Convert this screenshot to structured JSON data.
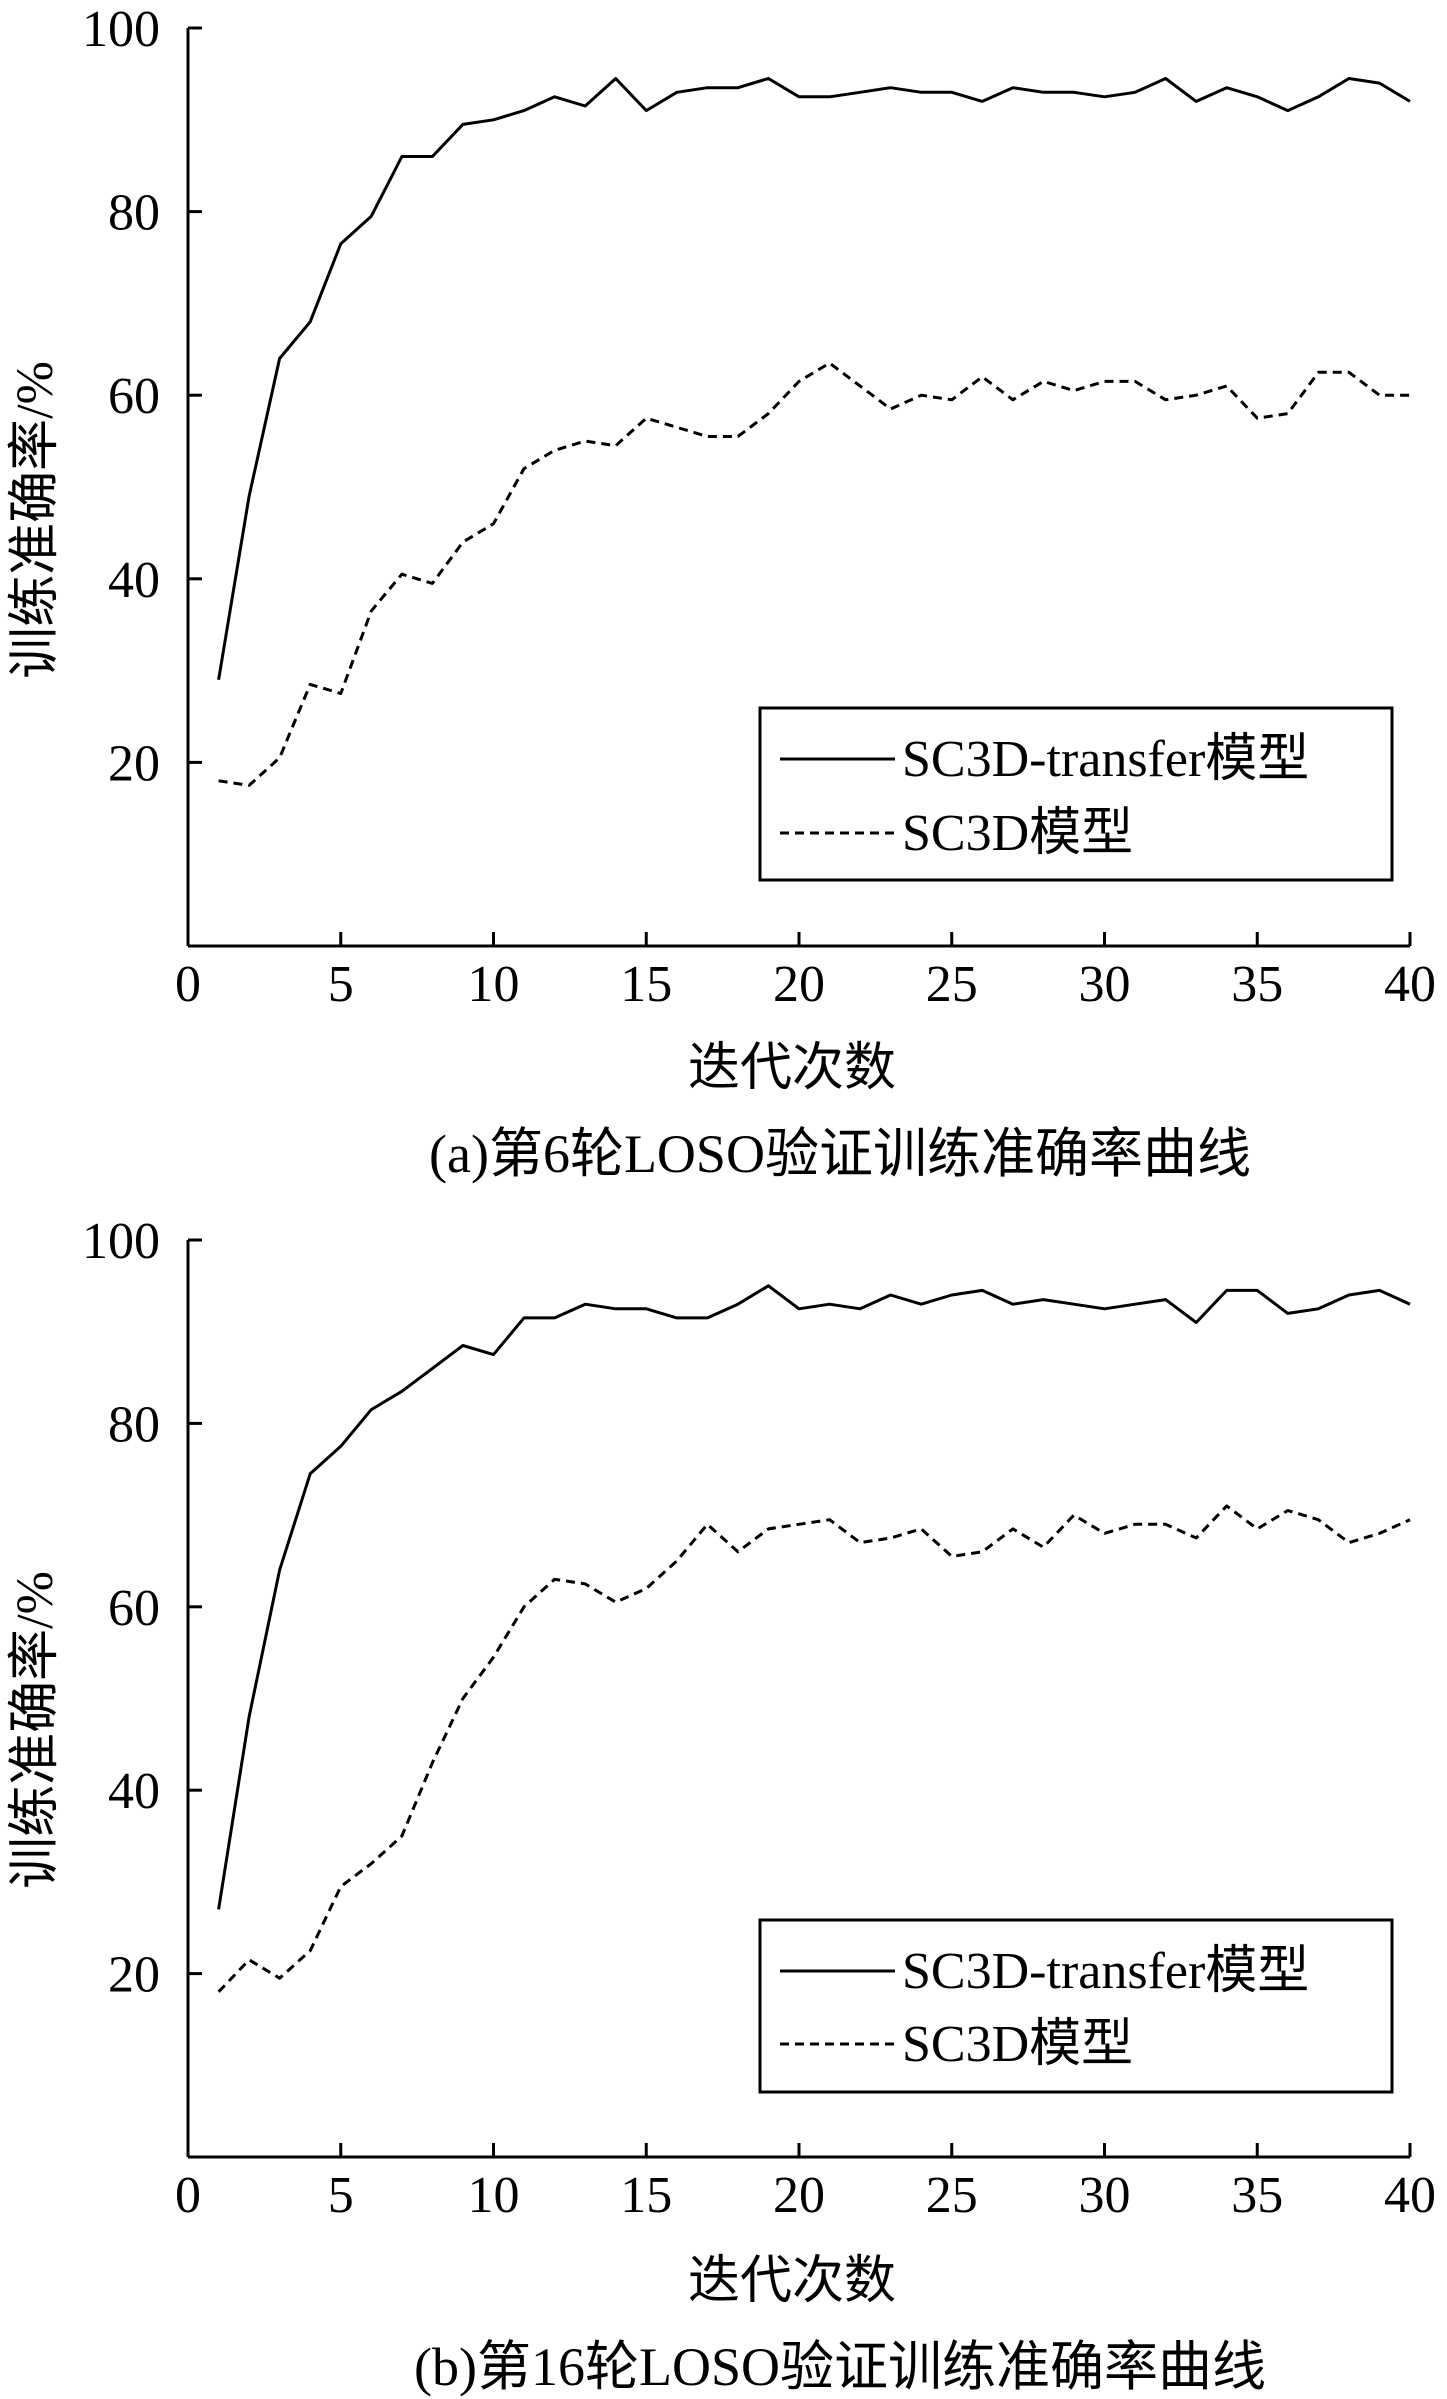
{
  "chart_data": [
    {
      "type": "line",
      "caption": "(a)第6轮LOSO验证训练准确率曲线",
      "xlabel": "迭代次数",
      "ylabel": "训练准确率/%",
      "xlim": [
        0,
        40
      ],
      "ylim": [
        0,
        100
      ],
      "xticks": [
        0,
        5,
        10,
        15,
        20,
        25,
        30,
        35,
        40
      ],
      "yticks": [
        20,
        40,
        60,
        80,
        100
      ],
      "grid": false,
      "legend_position": "lower-right",
      "x": [
        1,
        2,
        3,
        4,
        5,
        6,
        7,
        8,
        9,
        10,
        11,
        12,
        13,
        14,
        15,
        16,
        17,
        18,
        19,
        20,
        21,
        22,
        23,
        24,
        25,
        26,
        27,
        28,
        29,
        30,
        31,
        32,
        33,
        34,
        35,
        36,
        37,
        38,
        39,
        40
      ],
      "series": [
        {
          "name": "SC3D-transfer模型",
          "style": "solid",
          "values": [
            29,
            49,
            64,
            68,
            76.5,
            79.5,
            86,
            86,
            89.5,
            90,
            91,
            92.5,
            91.5,
            94.5,
            91,
            93,
            93.5,
            93.5,
            94.5,
            92.5,
            92.5,
            93,
            93.5,
            93,
            93,
            92,
            93.5,
            93,
            93,
            92.5,
            93,
            94.5,
            92,
            93.5,
            92.5,
            91,
            92.5,
            94.5,
            94,
            92
          ]
        },
        {
          "name": "SC3D模型",
          "style": "dashed",
          "values": [
            18,
            17.5,
            20.5,
            28.5,
            27.5,
            36.5,
            40.5,
            39.5,
            44,
            46,
            52,
            54,
            55,
            54.5,
            57.5,
            56.5,
            55.5,
            55.5,
            58,
            61.5,
            63.5,
            61,
            58.5,
            60,
            59.5,
            62,
            59.5,
            61.5,
            60.5,
            61.5,
            61.5,
            59.5,
            60,
            61,
            57.5,
            58,
            62.5,
            62.5,
            60,
            60
          ]
        }
      ]
    },
    {
      "type": "line",
      "caption": "(b)第16轮LOSO验证训练准确率曲线",
      "xlabel": "迭代次数",
      "ylabel": "训练准确率/%",
      "xlim": [
        0,
        40
      ],
      "ylim": [
        0,
        100
      ],
      "xticks": [
        0,
        5,
        10,
        15,
        20,
        25,
        30,
        35,
        40
      ],
      "yticks": [
        20,
        40,
        60,
        80,
        100
      ],
      "grid": false,
      "legend_position": "lower-right",
      "x": [
        1,
        2,
        3,
        4,
        5,
        6,
        7,
        8,
        9,
        10,
        11,
        12,
        13,
        14,
        15,
        16,
        17,
        18,
        19,
        20,
        21,
        22,
        23,
        24,
        25,
        26,
        27,
        28,
        29,
        30,
        31,
        32,
        33,
        34,
        35,
        36,
        37,
        38,
        39,
        40
      ],
      "series": [
        {
          "name": "SC3D-transfer模型",
          "style": "solid",
          "values": [
            27,
            48,
            64,
            74.5,
            77.5,
            81.5,
            83.5,
            86,
            88.5,
            87.5,
            91.5,
            91.5,
            93,
            92.5,
            92.5,
            91.5,
            91.5,
            93,
            95,
            92.5,
            93,
            92.5,
            94,
            93,
            94,
            94.5,
            93,
            93.5,
            93,
            92.5,
            93,
            93.5,
            91,
            94.5,
            94.5,
            92,
            92.5,
            94,
            94.5,
            93
          ]
        },
        {
          "name": "SC3D模型",
          "style": "dashed",
          "values": [
            18,
            21.5,
            19.5,
            22.5,
            29.5,
            32,
            35,
            43,
            50,
            54.5,
            60,
            63,
            62.5,
            60.5,
            62,
            65,
            69,
            66,
            68.5,
            69,
            69.5,
            67,
            67.5,
            68.5,
            65.5,
            66,
            68.5,
            66.5,
            70,
            68,
            69,
            69,
            67.5,
            71,
            68.5,
            70.5,
            69.5,
            67,
            68,
            69.5
          ]
        }
      ]
    }
  ]
}
